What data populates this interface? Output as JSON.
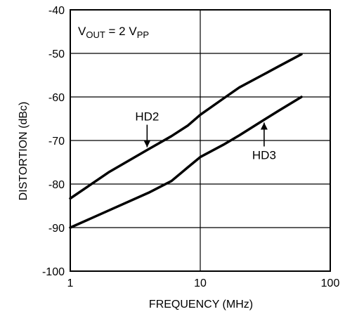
{
  "chart_data": {
    "type": "line",
    "title": "",
    "xlabel": "FREQUENCY (MHz)",
    "ylabel": "DISTORTION (dBc)",
    "x_scale": "log",
    "xlim": [
      1,
      100
    ],
    "ylim": [
      -100,
      -40
    ],
    "x_ticks": [
      1,
      10,
      100
    ],
    "x_tick_labels": [
      "1",
      "10",
      "100"
    ],
    "y_ticks": [
      -100,
      -90,
      -80,
      -70,
      -60,
      -50,
      -40
    ],
    "y_tick_labels": [
      "-100",
      "-90",
      "-80",
      "-70",
      "-60",
      "-50",
      "-40"
    ],
    "grid": true,
    "legend": "none",
    "condition": {
      "v": "V",
      "v_sub": "OUT",
      "eq": " = 2 V",
      "pp_sub": "PP"
    },
    "series": [
      {
        "name": "HD2",
        "color": "#000000",
        "x": [
          1,
          2,
          4,
          6,
          8,
          10,
          15,
          20,
          30,
          40,
          60
        ],
        "y": [
          -83.3,
          -77.2,
          -72.0,
          -69.0,
          -66.6,
          -64.1,
          -60.4,
          -57.8,
          -55.0,
          -53.0,
          -50.2
        ]
      },
      {
        "name": "HD3",
        "color": "#000000",
        "x": [
          1,
          2,
          4,
          6,
          8,
          10,
          15,
          20,
          30,
          40,
          60
        ],
        "y": [
          -90.0,
          -86.0,
          -82.0,
          -79.3,
          -76.2,
          -73.8,
          -71.0,
          -68.8,
          -65.5,
          -63.2,
          -60.0
        ]
      }
    ],
    "annotations": [
      {
        "text": "HD2",
        "target_series": "HD2"
      },
      {
        "text": "HD3",
        "target_series": "HD3"
      }
    ]
  }
}
